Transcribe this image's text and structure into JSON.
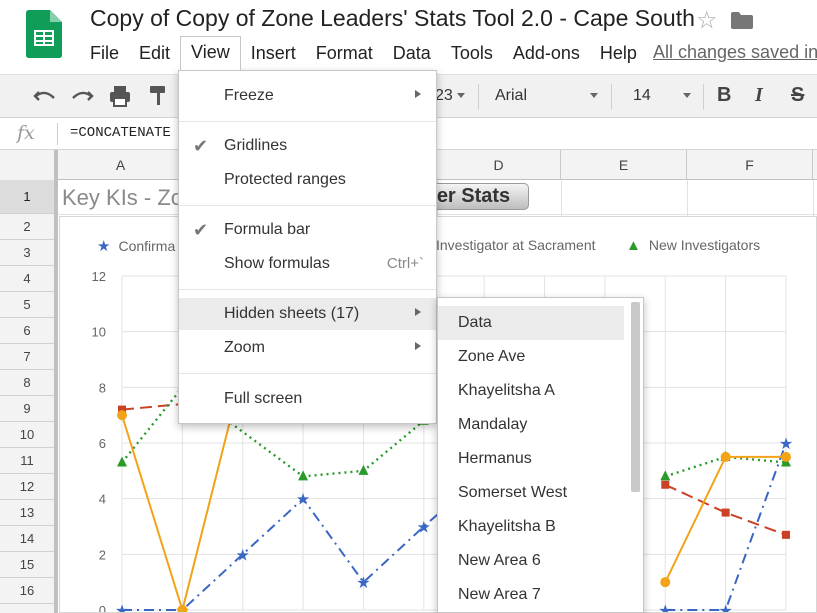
{
  "document": {
    "title": "Copy of Copy of Zone Leaders' Stats Tool 2.0 - Cape South",
    "saved_status": "All changes saved in"
  },
  "menubar": {
    "items": [
      {
        "label": "File"
      },
      {
        "label": "Edit"
      },
      {
        "label": "View"
      },
      {
        "label": "Insert"
      },
      {
        "label": "Format"
      },
      {
        "label": "Data"
      },
      {
        "label": "Tools"
      },
      {
        "label": "Add-ons"
      },
      {
        "label": "Help"
      }
    ]
  },
  "toolbar": {
    "number_format_tail": "23",
    "font_name": "Arial",
    "font_size": "14",
    "bold": "B",
    "italic": "I",
    "strike": "S"
  },
  "formula_bar": {
    "fx": "fx",
    "content": "=CONCATENATE"
  },
  "grid": {
    "columns": [
      "A",
      "D",
      "E",
      "F"
    ],
    "rows": [
      "1",
      "2",
      "3",
      "4",
      "5",
      "6",
      "7",
      "8",
      "9",
      "10",
      "11",
      "12",
      "13",
      "14",
      "15",
      "16"
    ],
    "cell_a1": "Key KIs - Zo",
    "button_text": "er Stats"
  },
  "view_menu": {
    "freeze": "Freeze",
    "gridlines": "Gridlines",
    "protected_ranges": "Protected ranges",
    "formula_bar": "Formula bar",
    "show_formulas": "Show formulas",
    "show_formulas_shortcut": "Ctrl+`",
    "hidden_sheets": "Hidden sheets (17)",
    "zoom": "Zoom",
    "full_screen": "Full screen",
    "check_glyph": "✔"
  },
  "hidden_sheets_submenu": {
    "items": [
      "Data",
      "Zone Ave",
      "Khayelitsha A",
      "Mandalay",
      "Hermanus",
      "Somerset West",
      "Khayelitsha B",
      "New Area 6",
      "New Area 7"
    ]
  },
  "colors": {
    "confirmations": "#3a66c4",
    "investigators_at_sacrament": "#cc4125",
    "new_investigators": "#2a9a2a",
    "fourth_series": "#f2a318",
    "sheets_green": "#0f9d58"
  },
  "chart_data": {
    "type": "line",
    "title": "",
    "ylim": [
      0,
      12
    ],
    "yticks": [
      "0",
      "2",
      "4",
      "6",
      "8",
      "10",
      "12"
    ],
    "legend": [
      {
        "name": "Confirma",
        "marker": "★"
      },
      {
        "name": "Investigator at Sacrament",
        "marker": "■"
      },
      {
        "name": "New Investigators",
        "marker": "▲"
      }
    ],
    "series": [
      {
        "name": "Confirma",
        "style": "dash-dot",
        "points": [
          [
            0,
            0
          ],
          [
            1,
            0
          ],
          [
            2,
            2
          ],
          [
            3,
            4
          ],
          [
            4,
            1
          ],
          [
            5,
            3
          ],
          [
            6,
            4.9
          ],
          [
            9,
            0
          ],
          [
            10,
            0
          ],
          [
            11,
            6
          ]
        ]
      },
      {
        "name": "Investigator at Sacrament",
        "style": "dashed",
        "points": [
          [
            0,
            7.2
          ],
          [
            1,
            7.4
          ],
          [
            9,
            4.5
          ],
          [
            10,
            3.5
          ],
          [
            11,
            2.7
          ]
        ]
      },
      {
        "name": "New Investigators",
        "style": "dotted",
        "points": [
          [
            0,
            5.3
          ],
          [
            1,
            8
          ],
          [
            3,
            4.8
          ],
          [
            4,
            5
          ],
          [
            5,
            6.8
          ],
          [
            6,
            7
          ],
          [
            9,
            4.8
          ],
          [
            10,
            5.5
          ],
          [
            11,
            5.3
          ]
        ]
      },
      {
        "name": "",
        "style": "solid",
        "points": [
          [
            0,
            7
          ],
          [
            1,
            0
          ],
          [
            2,
            8.6
          ],
          [
            9,
            1
          ],
          [
            10,
            5.5
          ],
          [
            11,
            5.5
          ]
        ]
      }
    ]
  }
}
